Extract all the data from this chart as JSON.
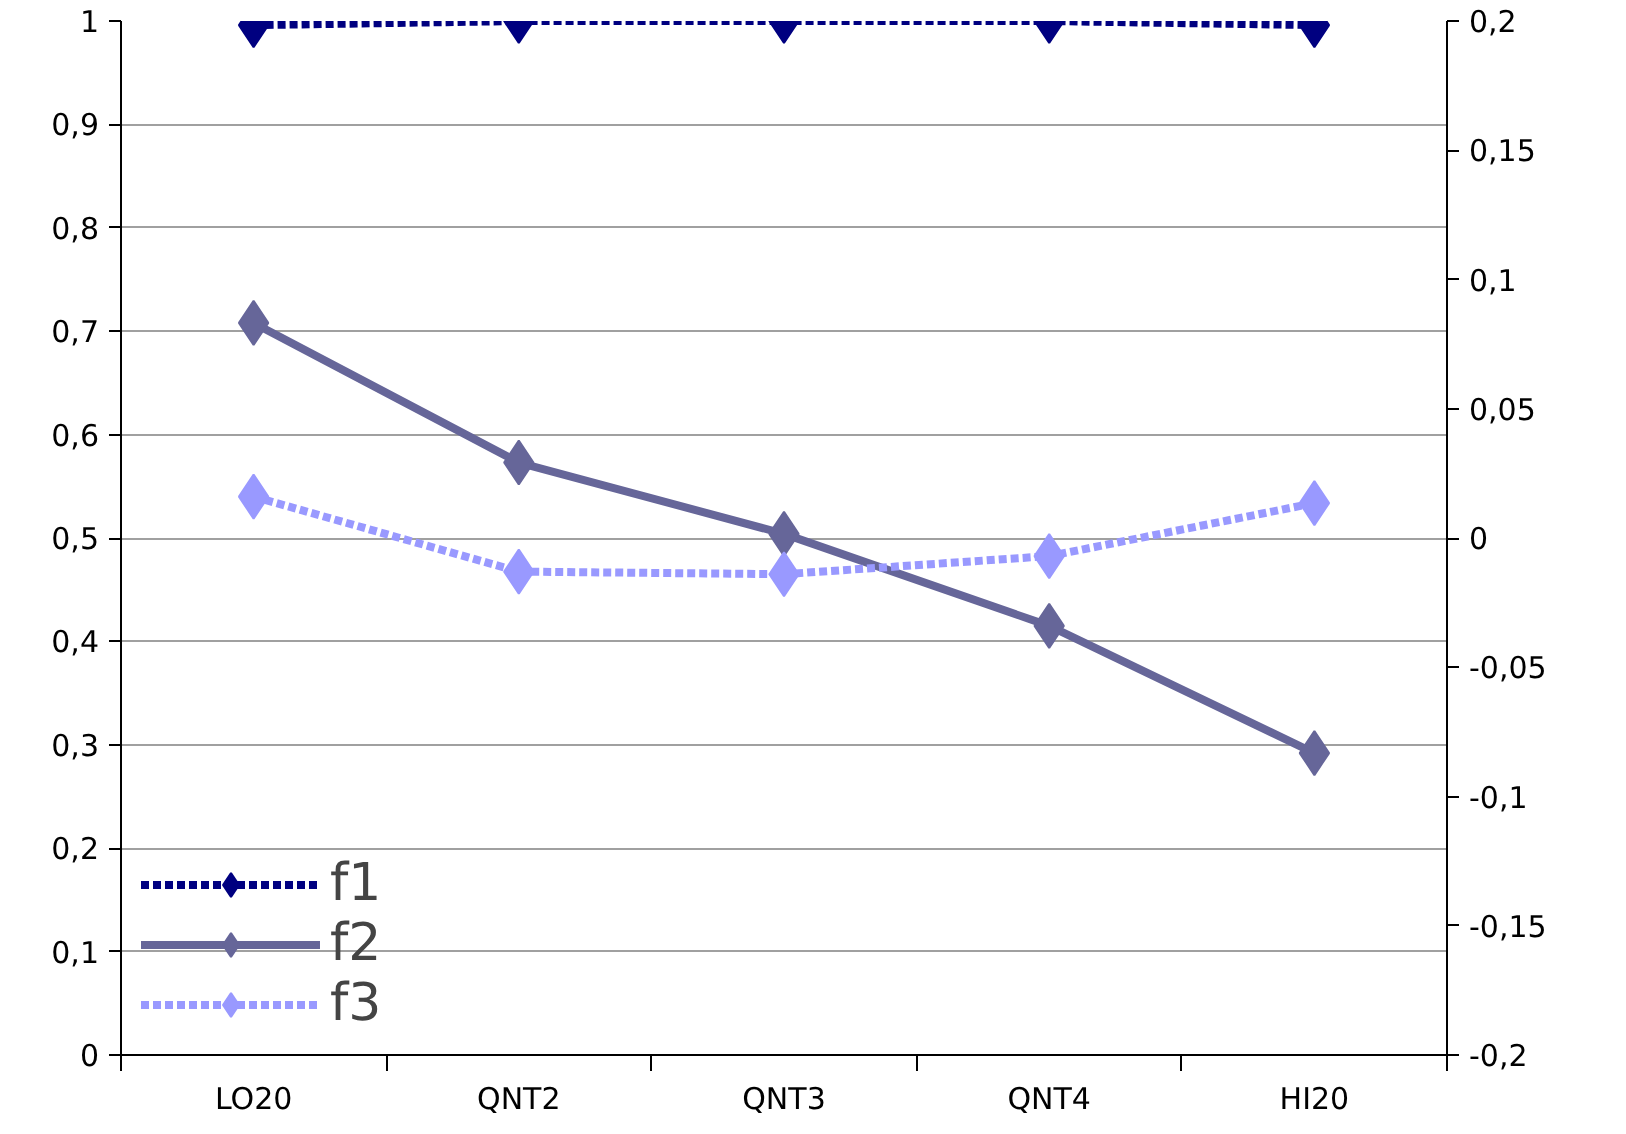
{
  "chart_data": {
    "type": "line",
    "categories": [
      "LO20",
      "QNT2",
      "QNT3",
      "QNT4",
      "HI20"
    ],
    "series": [
      {
        "name": "f1",
        "color": "#000080",
        "values": [
          0.996,
          1,
          1,
          1,
          0.996
        ],
        "line_style": "dashed"
      },
      {
        "name": "f2",
        "color": "#666699",
        "values": [
          0.708,
          0.573,
          0.504,
          0.415,
          0.292
        ],
        "line_style": "solid"
      },
      {
        "name": "f3",
        "color": "#9999ff",
        "values": [
          0.016,
          -0.013,
          -0.014,
          -0.007,
          0.0135
        ],
        "axis": "y2",
        "line_style": "dashed"
      }
    ],
    "ylim": [
      0,
      1
    ],
    "yticks": [
      0,
      {
        "value": 0.1,
        "label": "0,1"
      },
      {
        "value": 0.2,
        "label": "0,2"
      },
      {
        "value": 0.3,
        "label": "0,3"
      },
      {
        "value": 0.4,
        "label": "0,4"
      },
      {
        "value": 0.5,
        "label": "0,5"
      },
      {
        "value": 0.6,
        "label": "0,6"
      },
      {
        "value": 0.7,
        "label": "0,7"
      },
      {
        "value": 0.8,
        "label": "0,8"
      },
      {
        "value": 0.9,
        "label": "0,9"
      },
      1
    ],
    "y2lim": [
      -0.2,
      0.2
    ],
    "y2ticks": [
      {
        "value": -0.2,
        "label": "-0,2"
      },
      {
        "value": -0.15,
        "label": "-0,15"
      },
      {
        "value": -0.1,
        "label": "-0,1"
      },
      {
        "value": -0.05,
        "label": "-0,05"
      },
      0,
      {
        "value": 0.05,
        "label": "0,05"
      },
      {
        "value": 0.1,
        "label": "0,1"
      },
      {
        "value": 0.15,
        "label": "0,15"
      },
      {
        "value": 0.2,
        "label": "0,2"
      }
    ],
    "grid": "y",
    "legend": "bottom left",
    "marker": "diamond"
  }
}
